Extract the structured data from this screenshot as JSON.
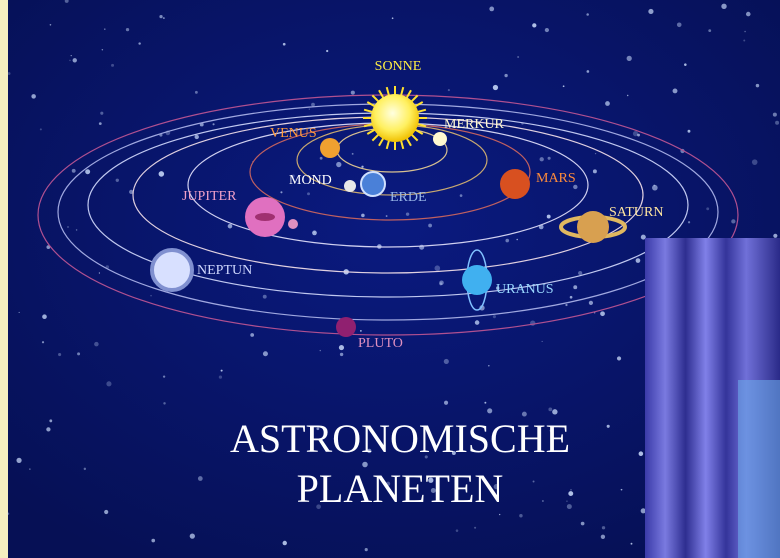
{
  "planets": [
    {
      "label": "SONNE"
    },
    {
      "label": "MERKUR"
    },
    {
      "label": "VENUS"
    },
    {
      "label": "MOND"
    },
    {
      "label": "ERDE"
    },
    {
      "label": "MARS"
    },
    {
      "label": "JUPITER"
    },
    {
      "label": "SATURN"
    },
    {
      "label": "NEPTUN"
    },
    {
      "label": "URANUS"
    },
    {
      "label": "PLUTO"
    }
  ],
  "title": {
    "line1": "ASTRONOMISCHE",
    "line2": "PLANETEN"
  }
}
